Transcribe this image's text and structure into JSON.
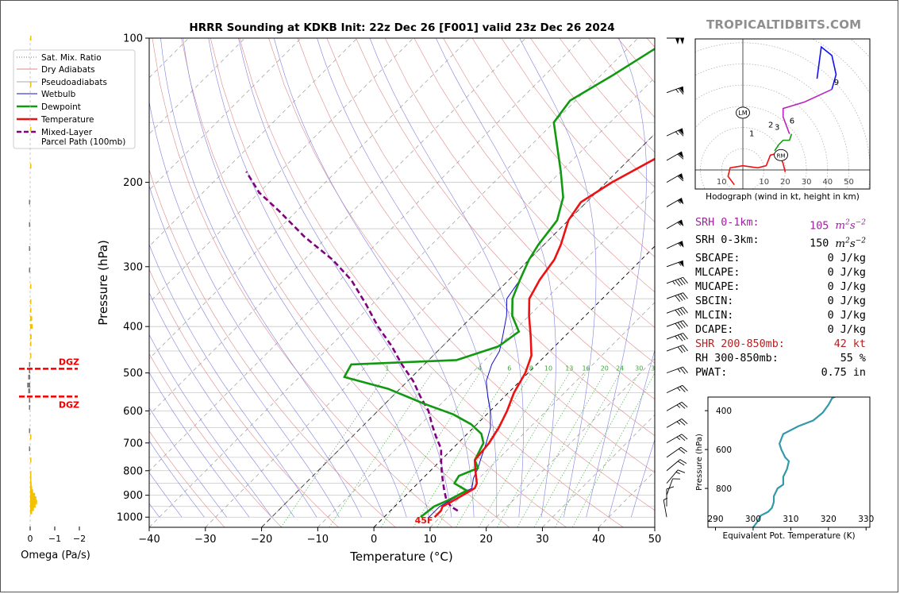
{
  "title": "HRRR Sounding at KDKB Init: 22z Dec 26 [F001] valid 23z Dec 26 2024",
  "brand": "TROPICALTIDBITS.COM",
  "colors": {
    "temperature": "#ee1111",
    "dewpoint": "#119911",
    "wetbulb": "#1111cc",
    "parcel": "#800080",
    "hodo_low": "#ee1111",
    "hodo_mid": "#119911",
    "hodo_upper": "#bb22bb",
    "hodo_top": "#1111ee",
    "theta_e": "#3399aa",
    "omega_pos": "#f2c100",
    "omega_neg": "#777777",
    "dgz": "#ee0000"
  },
  "skewt": {
    "xlabel": "Temperature (°C)",
    "ylabel": "Pressure (hPa)",
    "xlim": [
      -40,
      50
    ],
    "ylim": [
      1050,
      100
    ],
    "xticks": [
      "−40",
      "−30",
      "−20",
      "−10",
      "0",
      "10",
      "20",
      "30",
      "40",
      "50"
    ],
    "yticks": [
      "100",
      "200",
      "300",
      "400",
      "500",
      "600",
      "700",
      "800",
      "900",
      "1000"
    ],
    "surface_temp_label": "45F",
    "mixing_ratio_labels": [
      "1",
      "4",
      "6",
      "8",
      "10",
      "13",
      "16",
      "20",
      "24",
      "30",
      "36"
    ]
  },
  "legend": [
    {
      "label": "Sat. Mix. Ratio",
      "style": "satmix"
    },
    {
      "label": "Dry Adiabats",
      "style": "dry"
    },
    {
      "label": "Pseudoadiabats",
      "style": "moist"
    },
    {
      "label": "Wetbulb",
      "style": "wetbulb"
    },
    {
      "label": "Dewpoint",
      "style": "dewpoint"
    },
    {
      "label": "Temperature",
      "style": "temperature"
    },
    {
      "label": "Mixed-Layer",
      "label2": "Parcel Path (100mb)",
      "style": "parcel"
    }
  ],
  "chart_data": [
    {
      "type": "line",
      "title": "HRRR Sounding at KDKB Init: 22z Dec 26 [F001] valid 23z Dec 26 2024",
      "xlabel": "Temperature (°C)",
      "ylabel": "Pressure (hPa)",
      "series": [
        {
          "name": "Temperature",
          "points": [
            [
              9,
              1000
            ],
            [
              9,
              970
            ],
            [
              8.5,
              950
            ],
            [
              9.5,
              920
            ],
            [
              11,
              870
            ],
            [
              10.5,
              850
            ],
            [
              8,
              800
            ],
            [
              6,
              760
            ],
            [
              5.5,
              700
            ],
            [
              4.5,
              650
            ],
            [
              3,
              600
            ],
            [
              1,
              550
            ],
            [
              -0.5,
              500
            ],
            [
              -2.5,
              460
            ],
            [
              -6,
              420
            ],
            [
              -10,
              380
            ],
            [
              -13,
              350
            ],
            [
              -14.5,
              320
            ],
            [
              -15.5,
              290
            ],
            [
              -17,
              270
            ],
            [
              -20,
              240
            ],
            [
              -21,
              220
            ],
            [
              -19,
              200
            ],
            [
              -14,
              170
            ],
            [
              -8,
              150
            ],
            [
              -5,
              130
            ],
            [
              -3,
              115
            ],
            [
              -1,
              100
            ]
          ]
        },
        {
          "name": "Dewpoint",
          "points": [
            [
              6.5,
              1000
            ],
            [
              7,
              950
            ],
            [
              8.5,
              920
            ],
            [
              10,
              880
            ],
            [
              6.5,
              850
            ],
            [
              6,
              820
            ],
            [
              8,
              790
            ],
            [
              6,
              760
            ],
            [
              4.5,
              700
            ],
            [
              2.5,
              670
            ],
            [
              -1,
              640
            ],
            [
              -6,
              610
            ],
            [
              -13,
              580
            ],
            [
              -22,
              540
            ],
            [
              -32,
              510
            ],
            [
              -33,
              480
            ],
            [
              -15,
              470
            ],
            [
              -10,
              440
            ],
            [
              -9,
              410
            ],
            [
              -13,
              380
            ],
            [
              -16,
              350
            ],
            [
              -18,
              320
            ],
            [
              -20,
              290
            ],
            [
              -21,
              270
            ],
            [
              -22,
              240
            ],
            [
              -25,
              215
            ],
            [
              -30,
              190
            ],
            [
              -40,
              150
            ],
            [
              -41,
              135
            ],
            [
              -38,
              120
            ],
            [
              -34,
              100
            ]
          ]
        },
        {
          "name": "Wetbulb",
          "points": [
            [
              8,
              1000
            ],
            [
              8,
              950
            ],
            [
              9.5,
              900
            ],
            [
              10.5,
              870
            ],
            [
              9,
              830
            ],
            [
              8,
              790
            ],
            [
              7,
              760
            ],
            [
              5,
              700
            ],
            [
              3,
              650
            ],
            [
              0,
              600
            ],
            [
              -3,
              560
            ],
            [
              -6,
              520
            ],
            [
              -8,
              480
            ],
            [
              -9,
              450
            ],
            [
              -11,
              420
            ],
            [
              -14,
              380
            ],
            [
              -17,
              350
            ],
            [
              -18,
              320
            ],
            [
              -20,
              290
            ]
          ]
        },
        {
          "name": "Mixed-Layer Parcel Path (100mb)",
          "points": [
            [
              12,
              970
            ],
            [
              10,
              950
            ],
            [
              8,
              920
            ],
            [
              6,
              880
            ],
            [
              4,
              840
            ],
            [
              2,
              800
            ],
            [
              0,
              760
            ],
            [
              -2,
              720
            ],
            [
              -5,
              680
            ],
            [
              -8,
              640
            ],
            [
              -11,
              600
            ],
            [
              -15,
              560
            ],
            [
              -19,
              520
            ],
            [
              -24,
              480
            ],
            [
              -29,
              440
            ],
            [
              -35,
              400
            ],
            [
              -41,
              360
            ],
            [
              -48,
              320
            ],
            [
              -55,
              290
            ],
            [
              -64,
              260
            ],
            [
              -73,
              230
            ],
            [
              -80,
              210
            ],
            [
              -86,
              190
            ]
          ]
        }
      ]
    },
    {
      "type": "line",
      "title": "Hodograph (wind in kt, height in km)",
      "xticks": [
        "10",
        "10",
        "20",
        "30",
        "40",
        "50"
      ],
      "height_labels": [
        "1",
        "2",
        "3",
        "6",
        "9"
      ],
      "markers": [
        "LM",
        "RM"
      ],
      "series": [
        {
          "name": "0-3 km",
          "points": [
            [
              -4,
              -7
            ],
            [
              -7,
              -3
            ],
            [
              -6,
              1
            ],
            [
              0,
              2
            ],
            [
              7,
              1
            ],
            [
              11,
              2
            ],
            [
              13,
              7
            ],
            [
              17,
              8
            ],
            [
              19,
              3
            ],
            [
              20,
              -1
            ]
          ]
        },
        {
          "name": "3-6 km",
          "points": [
            [
              15,
              9
            ],
            [
              17,
              12
            ],
            [
              19,
              14
            ],
            [
              22,
              14
            ],
            [
              23,
              17
            ]
          ]
        },
        {
          "name": "6-9 km",
          "points": [
            [
              22,
              17
            ],
            [
              19,
              25
            ],
            [
              19,
              29
            ],
            [
              29,
              32
            ],
            [
              42,
              38
            ]
          ]
        },
        {
          "name": "9+ km",
          "points": [
            [
              42,
              38
            ],
            [
              44,
              45
            ],
            [
              42,
              54
            ],
            [
              37,
              58
            ],
            [
              35,
              43
            ]
          ]
        }
      ]
    },
    {
      "type": "line",
      "xlabel": "Equivalent Pot. Temperature (K)",
      "ylabel": "Pressure (hPa)",
      "xlim": [
        288,
        331
      ],
      "ylim": [
        1000,
        330
      ],
      "xticks": [
        "290",
        "300",
        "310",
        "320",
        "330"
      ],
      "yticks": [
        "400",
        "600",
        "800"
      ],
      "series": [
        {
          "name": "Equivalent Pot. Temperature",
          "points": [
            [
              300,
              1000
            ],
            [
              301,
              975
            ],
            [
              302,
              940
            ],
            [
              304,
              920
            ],
            [
              305,
              900
            ],
            [
              305.5,
              870
            ],
            [
              305.5,
              840
            ],
            [
              306.5,
              800
            ],
            [
              308,
              780
            ],
            [
              308,
              740
            ],
            [
              309,
              700
            ],
            [
              309.5,
              660
            ],
            [
              308.5,
              640
            ],
            [
              307.5,
              600
            ],
            [
              307,
              570
            ],
            [
              308,
              520
            ],
            [
              312,
              480
            ],
            [
              316,
              450
            ],
            [
              318.5,
              410
            ],
            [
              320,
              370
            ],
            [
              321,
              335
            ],
            [
              324,
              310
            ]
          ]
        }
      ]
    },
    {
      "type": "bar",
      "xlabel": "Omega (Pa/s)",
      "xticks": [
        "0",
        "−1",
        "−2"
      ],
      "dgz_label": "DGZ",
      "dgz_levels_hpa": [
        490,
        560
      ],
      "levels_hpa": [
        975,
        960,
        945,
        930,
        915,
        900,
        885,
        870,
        855,
        840,
        825,
        810,
        760,
        720,
        680,
        660,
        590,
        570,
        545,
        530,
        510,
        495,
        480,
        460,
        435,
        420,
        400,
        385,
        370,
        355,
        330,
        305,
        275,
        245,
        220,
        185,
        155,
        125,
        100
      ],
      "values": [
        -0.08,
        -0.15,
        -0.22,
        -0.28,
        -0.25,
        -0.2,
        -0.12,
        -0.08,
        -0.06,
        -0.04,
        -0.03,
        -0.02,
        -0.01,
        0.01,
        -0.01,
        0.01,
        0.02,
        0.05,
        0.08,
        0.12,
        0.08,
        0.05,
        0.02,
        -0.01,
        -0.03,
        -0.06,
        -0.1,
        -0.08,
        -0.05,
        -0.03,
        -0.01,
        0.01,
        0.02,
        0.03,
        0.02,
        -0.01,
        -0.02,
        -0.03,
        -0.01
      ]
    }
  ],
  "stats": [
    {
      "label": "SRH 0-1km:",
      "value": "105",
      "unit": "m2s-2",
      "color": "#a020a0"
    },
    {
      "label": "SRH 0-3km:",
      "value": "150",
      "unit": "m2s-2",
      "color": "#000000"
    },
    {
      "label": "SBCAPE:",
      "value": "0 J/kg",
      "color": "#000000"
    },
    {
      "label": "MLCAPE:",
      "value": "0 J/kg",
      "color": "#000000"
    },
    {
      "label": "MUCAPE:",
      "value": "0 J/kg",
      "color": "#000000"
    },
    {
      "label": "SBCIN:",
      "value": "0 J/kg",
      "color": "#000000"
    },
    {
      "label": "MLCIN:",
      "value": "0 J/kg",
      "color": "#000000"
    },
    {
      "label": "DCAPE:",
      "value": "0 J/kg",
      "color": "#000000"
    },
    {
      "label": "SHR 200-850mb:",
      "value": "42 kt",
      "color": "#b22222"
    },
    {
      "label": "RH 300-850mb:",
      "value": "55 %",
      "color": "#000000"
    },
    {
      "label": "PWAT:",
      "value": "0.75 in",
      "color": "#000000"
    }
  ],
  "wind_barbs": [
    {
      "p": 100,
      "spd": 100,
      "dir": 270
    },
    {
      "p": 130,
      "spd": 65,
      "dir": 250
    },
    {
      "p": 160,
      "spd": 65,
      "dir": 245
    },
    {
      "p": 180,
      "spd": 60,
      "dir": 240
    },
    {
      "p": 200,
      "spd": 60,
      "dir": 240
    },
    {
      "p": 225,
      "spd": 55,
      "dir": 240
    },
    {
      "p": 250,
      "spd": 55,
      "dir": 240
    },
    {
      "p": 275,
      "spd": 55,
      "dir": 245
    },
    {
      "p": 300,
      "spd": 55,
      "dir": 250
    },
    {
      "p": 325,
      "spd": 45,
      "dir": 250
    },
    {
      "p": 350,
      "spd": 40,
      "dir": 250
    },
    {
      "p": 375,
      "spd": 40,
      "dir": 250
    },
    {
      "p": 400,
      "spd": 40,
      "dir": 250
    },
    {
      "p": 425,
      "spd": 35,
      "dir": 250
    },
    {
      "p": 450,
      "spd": 30,
      "dir": 250
    },
    {
      "p": 500,
      "spd": 25,
      "dir": 250
    },
    {
      "p": 550,
      "spd": 25,
      "dir": 245
    },
    {
      "p": 600,
      "spd": 25,
      "dir": 240
    },
    {
      "p": 650,
      "spd": 25,
      "dir": 240
    },
    {
      "p": 700,
      "spd": 25,
      "dir": 240
    },
    {
      "p": 750,
      "spd": 20,
      "dir": 235
    },
    {
      "p": 800,
      "spd": 20,
      "dir": 230
    },
    {
      "p": 850,
      "spd": 15,
      "dir": 220
    },
    {
      "p": 900,
      "spd": 10,
      "dir": 200
    },
    {
      "p": 950,
      "spd": 10,
      "dir": 180
    },
    {
      "p": 1000,
      "spd": 5,
      "dir": 170
    }
  ]
}
